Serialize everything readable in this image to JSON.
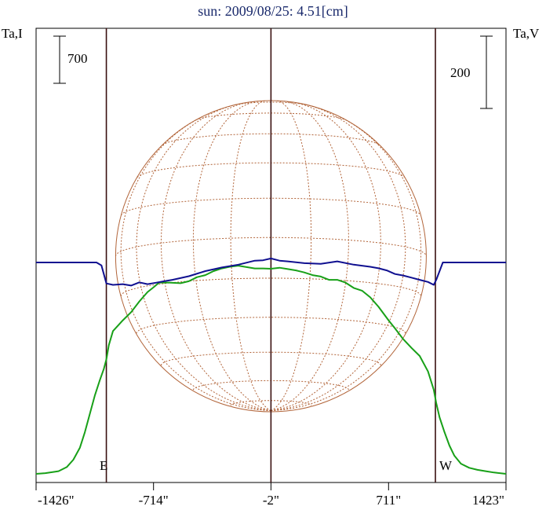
{
  "chart_data": {
    "type": "line",
    "title": "sun: 2009/08/25: 4.51[cm]",
    "left_axis_label": "Ta,I",
    "right_axis_label": "Ta,V",
    "x_ticks": [
      "-1426\"",
      "-714\"",
      "-2\"",
      "711\"",
      "1423\""
    ],
    "x_tick_values": [
      -1426,
      -714,
      -2,
      711,
      1423
    ],
    "xlim": [
      -1426,
      1423
    ],
    "limb_markers": [
      {
        "label": "E",
        "x": -1000
      },
      {
        "label": "W",
        "x": 995
      }
    ],
    "scale_bars": [
      {
        "side": "left",
        "label": "700",
        "value": 700
      },
      {
        "side": "right",
        "label": "200",
        "value": 200
      }
    ],
    "series": [
      {
        "color": "#18a018",
        "axis": "left",
        "x": [
          -1426,
          -1370,
          -1290,
          -1240,
          -1200,
          -1160,
          -1130,
          -1100,
          -1070,
          -1040,
          -1015,
          -1000,
          -985,
          -960,
          -900,
          -850,
          -800,
          -750,
          -714,
          -680,
          -620,
          -550,
          -500,
          -450,
          -400,
          -350,
          -300,
          -250,
          -200,
          -150,
          -100,
          -50,
          -2,
          50,
          100,
          150,
          200,
          250,
          300,
          350,
          400,
          450,
          500,
          550,
          600,
          650,
          711,
          750,
          800,
          850,
          900,
          950,
          985,
          1000,
          1020,
          1050,
          1080,
          1110,
          1150,
          1200,
          1250,
          1300,
          1350,
          1423
        ],
        "y": [
          0,
          10,
          40,
          100,
          210,
          390,
          620,
          890,
          1160,
          1390,
          1560,
          1700,
          1910,
          2120,
          2280,
          2400,
          2560,
          2700,
          2770,
          2840,
          2840,
          2830,
          2860,
          2920,
          2950,
          3010,
          3050,
          3075,
          3090,
          3070,
          3050,
          3050,
          3045,
          3060,
          3040,
          3020,
          2990,
          2950,
          2930,
          2880,
          2880,
          2840,
          2760,
          2720,
          2620,
          2480,
          2280,
          2160,
          2000,
          1870,
          1750,
          1520,
          1250,
          1050,
          840,
          620,
          420,
          270,
          150,
          90,
          60,
          40,
          20,
          0
        ]
      },
      {
        "color": "#101090",
        "axis": "right",
        "x": [
          -1426,
          -1300,
          -1200,
          -1100,
          -1060,
          -1030,
          -1000,
          -960,
          -900,
          -850,
          -800,
          -750,
          -700,
          -650,
          -600,
          -500,
          -400,
          -300,
          -200,
          -100,
          -50,
          -2,
          50,
          100,
          200,
          300,
          400,
          500,
          600,
          650,
          700,
          750,
          800,
          850,
          900,
          950,
          985,
          1000,
          1040,
          1080,
          1120,
          1200,
          1300,
          1423
        ],
        "y": [
          0,
          0,
          0,
          0,
          0,
          -8,
          -58,
          -62,
          -60,
          -64,
          -55,
          -60,
          -56,
          -52,
          -48,
          -38,
          -24,
          -14,
          -6,
          5,
          6,
          11,
          5,
          3,
          -2,
          -4,
          3,
          -6,
          -12,
          -16,
          -22,
          -32,
          -36,
          -42,
          -48,
          -54,
          -62,
          -48,
          0,
          0,
          0,
          0,
          0,
          0
        ]
      }
    ]
  }
}
